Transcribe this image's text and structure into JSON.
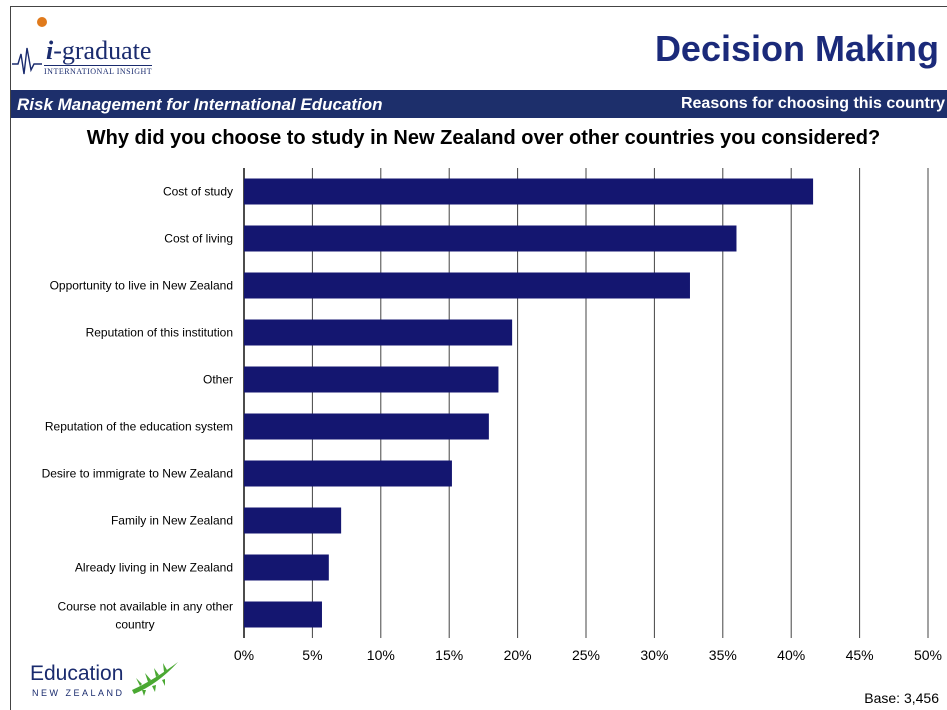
{
  "header": {
    "logo_main": "-graduate",
    "logo_i": "i",
    "logo_sub": "INTERNATIONAL INSIGHT",
    "title": "Decision Making"
  },
  "banner": {
    "left": "Risk Management for International Education",
    "right": "Reasons for choosing this country"
  },
  "question": "Why did you choose to study in New Zealand over other countries you considered?",
  "footer": {
    "edu_main": "Education",
    "edu_sub": "NEW ZEALAND",
    "base": "Base: 3,456"
  },
  "colors": {
    "bar": "#141670",
    "banner": "#1d2f6b",
    "title": "#1b2a7a",
    "leaf": "#4aa832"
  },
  "chart_data": {
    "type": "bar",
    "orientation": "horizontal",
    "categories": [
      "Cost of study",
      "Cost of living",
      "Opportunity to live in New Zealand",
      "Reputation of this institution",
      "Other",
      "Reputation of the education system",
      "Desire to immigrate to New Zealand",
      "Family in New Zealand",
      "Already living in New Zealand",
      "Course not available in any other country"
    ],
    "values": [
      41.6,
      36.0,
      32.6,
      19.6,
      18.6,
      17.9,
      15.2,
      7.1,
      6.2,
      5.7
    ],
    "xlim": [
      0,
      50
    ],
    "xticks": [
      "0%",
      "5%",
      "10%",
      "15%",
      "20%",
      "25%",
      "30%",
      "35%",
      "40%",
      "45%",
      "50%"
    ],
    "grid": true
  }
}
